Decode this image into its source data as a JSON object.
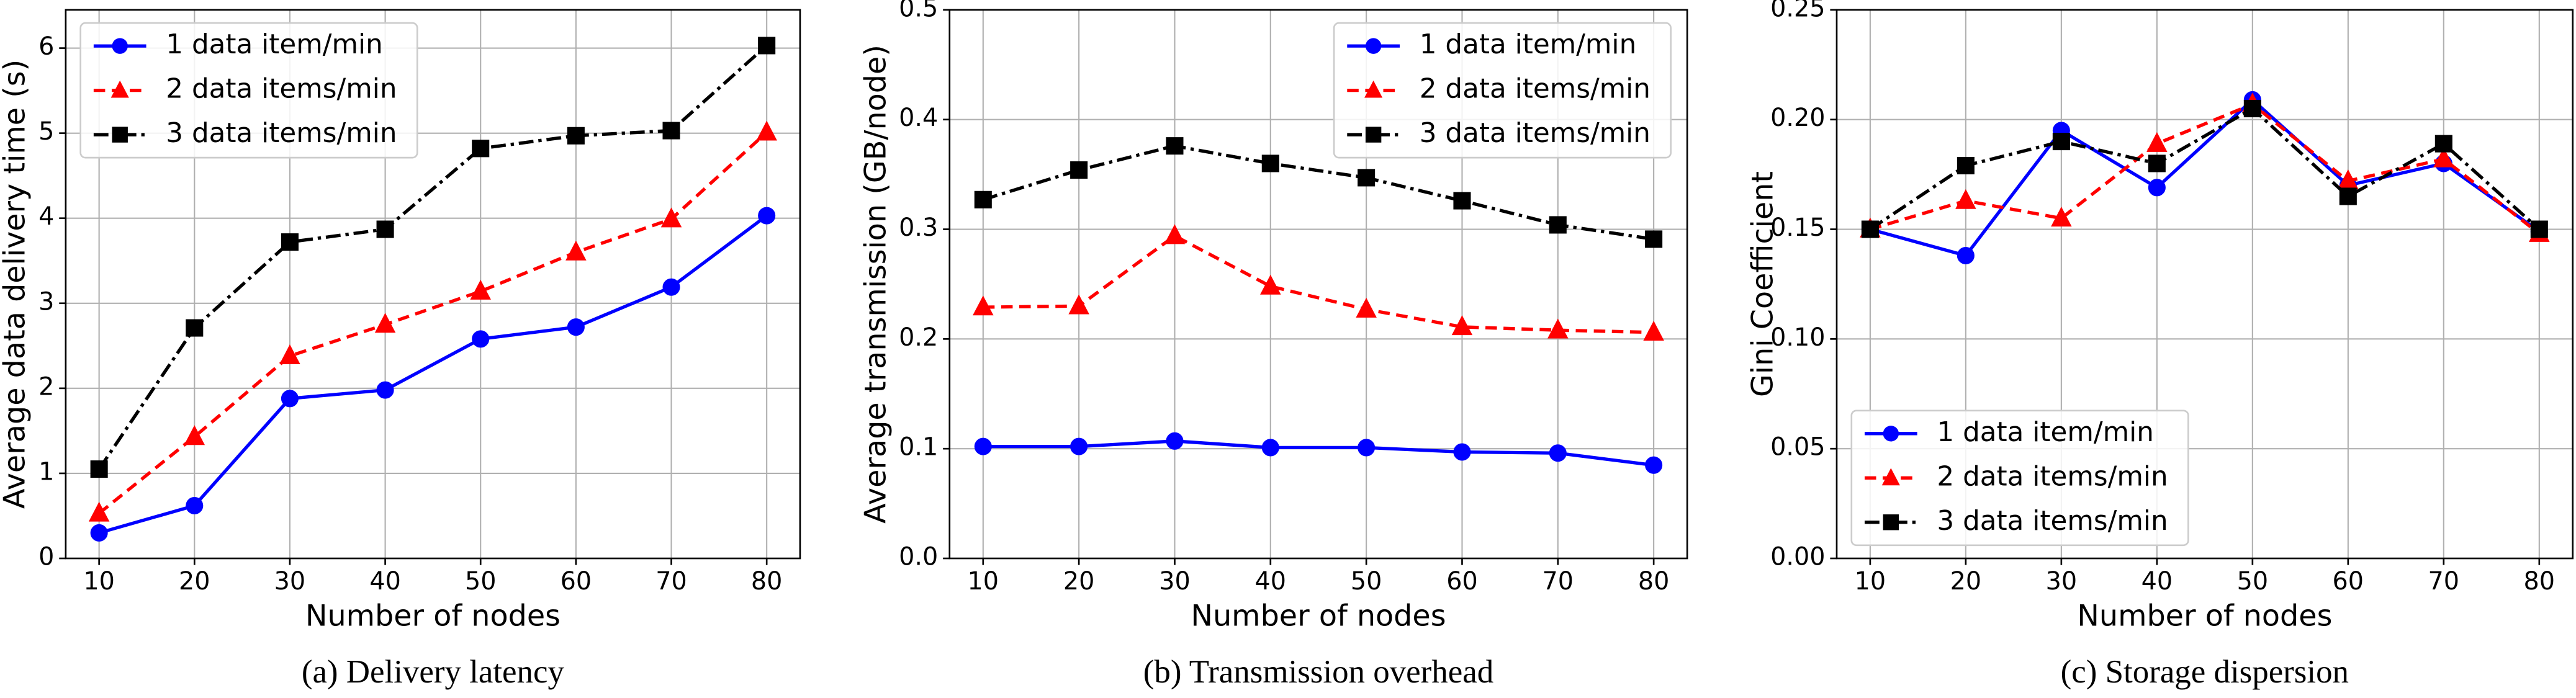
{
  "chart_data": [
    {
      "type": "line",
      "caption": "(a)  Delivery latency",
      "xlabel": "Number of nodes",
      "ylabel": "Average data delivery time (s)",
      "x": [
        10,
        20,
        30,
        40,
        50,
        60,
        70,
        80
      ],
      "xlim": [
        6.5,
        83.5
      ],
      "xticks": [
        10,
        20,
        30,
        40,
        50,
        60,
        70,
        80
      ],
      "ylim": [
        0,
        6.45
      ],
      "yticks": [
        0,
        1,
        2,
        3,
        4,
        5,
        6
      ],
      "grid": true,
      "legend": "upper left",
      "series": [
        {
          "name": "1 data item/min",
          "color": "#0000ff",
          "linestyle": "solid",
          "marker": "circle",
          "values": [
            0.3,
            0.62,
            1.88,
            1.98,
            2.58,
            2.72,
            3.19,
            4.03
          ]
        },
        {
          "name": "2 data items/min",
          "color": "#ff0000",
          "linestyle": "dashed",
          "marker": "triangle",
          "values": [
            0.53,
            1.43,
            2.38,
            2.75,
            3.14,
            3.6,
            3.99,
            5.01
          ]
        },
        {
          "name": "3 data items/min",
          "color": "#000000",
          "linestyle": "dashdot",
          "marker": "square",
          "values": [
            1.05,
            2.71,
            3.72,
            3.87,
            4.82,
            4.97,
            5.03,
            6.03
          ]
        }
      ]
    },
    {
      "type": "line",
      "caption": "(b)  Transmission overhead",
      "xlabel": "Number of nodes",
      "ylabel": "Average transmission (GB/node)",
      "x": [
        10,
        20,
        30,
        40,
        50,
        60,
        70,
        80
      ],
      "xlim": [
        6.5,
        83.5
      ],
      "xticks": [
        10,
        20,
        30,
        40,
        50,
        60,
        70,
        80
      ],
      "ylim": [
        0,
        0.5
      ],
      "yticks": [
        {
          "value": 0,
          "label": "0.0"
        },
        0.1,
        0.2,
        0.3,
        0.4,
        0.5
      ],
      "grid": true,
      "legend": "upper right",
      "series": [
        {
          "name": "1 data item/min",
          "color": "#0000ff",
          "linestyle": "solid",
          "marker": "circle",
          "values": [
            0.102,
            0.102,
            0.107,
            0.101,
            0.101,
            0.097,
            0.096,
            0.085
          ]
        },
        {
          "name": "2 data items/min",
          "color": "#ff0000",
          "linestyle": "dashed",
          "marker": "triangle",
          "values": [
            0.229,
            0.23,
            0.294,
            0.248,
            0.227,
            0.211,
            0.208,
            0.206
          ]
        },
        {
          "name": "3 data items/min",
          "color": "#000000",
          "linestyle": "dashdot",
          "marker": "square",
          "values": [
            0.327,
            0.354,
            0.376,
            0.36,
            0.347,
            0.326,
            0.304,
            0.291
          ]
        }
      ]
    },
    {
      "type": "line",
      "caption": "(c)  Storage dispersion",
      "xlabel": "Number of nodes",
      "ylabel": "Gini Coefficient",
      "x": [
        10,
        20,
        30,
        40,
        50,
        60,
        70,
        80
      ],
      "xlim": [
        6.5,
        83.5
      ],
      "xticks": [
        10,
        20,
        30,
        40,
        50,
        60,
        70,
        80
      ],
      "ylim": [
        0,
        0.25
      ],
      "yticks": [
        {
          "value": 0,
          "label": "0.00"
        },
        {
          "value": 0.05,
          "label": "0.05"
        },
        {
          "value": 0.1,
          "label": "0.10"
        },
        {
          "value": 0.15,
          "label": "0.15"
        },
        {
          "value": 0.2,
          "label": "0.20"
        },
        {
          "value": 0.25,
          "label": "0.25"
        }
      ],
      "grid": true,
      "legend": "lower left",
      "series": [
        {
          "name": "1 data item/min",
          "color": "#0000ff",
          "linestyle": "solid",
          "marker": "circle",
          "values": [
            0.15,
            0.138,
            0.195,
            0.169,
            0.209,
            0.17,
            0.18,
            0.149
          ]
        },
        {
          "name": "2 data items/min",
          "color": "#ff0000",
          "linestyle": "dashed",
          "marker": "triangle",
          "values": [
            0.15,
            0.163,
            0.155,
            0.189,
            0.207,
            0.172,
            0.182,
            0.148
          ]
        },
        {
          "name": "3 data items/min",
          "color": "#000000",
          "linestyle": "dashdot",
          "marker": "square",
          "values": [
            0.15,
            0.179,
            0.19,
            0.18,
            0.205,
            0.165,
            0.189,
            0.15
          ]
        }
      ]
    }
  ]
}
